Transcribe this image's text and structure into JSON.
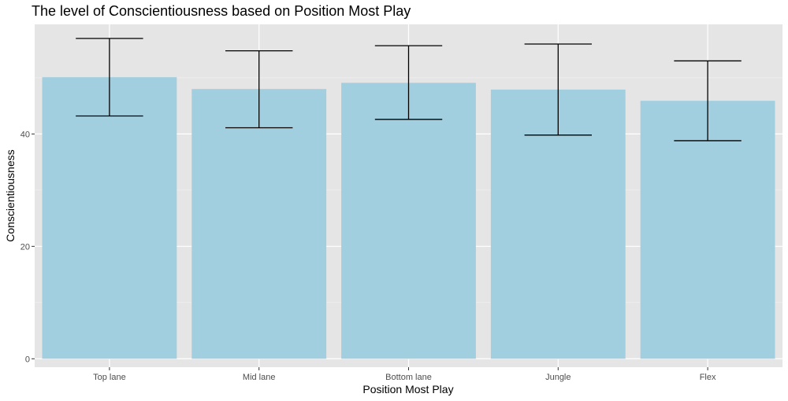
{
  "chart_data": {
    "type": "bar",
    "title": "The level of Conscientiousness based on Position Most Play",
    "xlabel": "Position Most Play",
    "ylabel": "Conscientiousness",
    "categories": [
      "Top lane",
      "Mid lane",
      "Bottom lane",
      "Jungle",
      "Flex"
    ],
    "values": [
      50.1,
      48.0,
      49.1,
      47.9,
      45.9
    ],
    "error_bars": [
      {
        "low": 43.2,
        "high": 57.0
      },
      {
        "low": 41.1,
        "high": 54.8
      },
      {
        "low": 42.6,
        "high": 55.7
      },
      {
        "low": 39.8,
        "high": 56.0
      },
      {
        "low": 38.8,
        "high": 53.0
      }
    ],
    "yticks": [
      0,
      20,
      40
    ],
    "ylim": [
      -1.5,
      59.5
    ],
    "grid": true,
    "colors": {
      "bar": "#a1cfe0",
      "panel": "#e5e5e5",
      "grid_major": "#ffffff",
      "grid_minor": "#f2f2f2",
      "errorbar": "#000000"
    }
  }
}
